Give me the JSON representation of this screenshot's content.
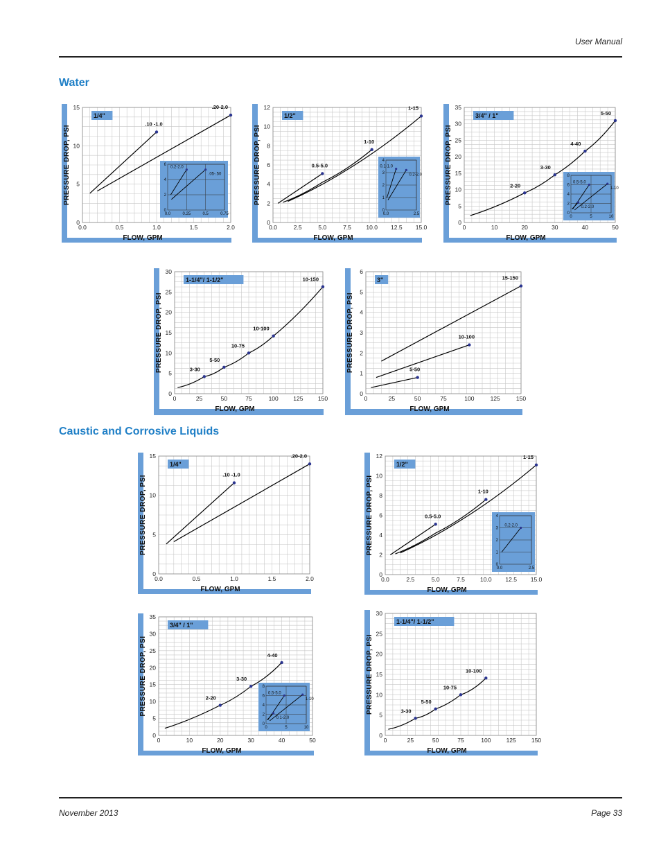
{
  "header": {
    "text": "User Manual"
  },
  "footer": {
    "date": "November 2013",
    "page": "Page 33"
  },
  "sections": {
    "water": "Water",
    "caustic": "Caustic and Corrosive Liquids"
  },
  "chart_data": [
    {
      "type": "line",
      "section": "Water",
      "tag": "1/4\"",
      "xlabel": "FLOW, GPM",
      "ylabel": "PRESSURE DROP, PSI",
      "xticks": [
        "0.0",
        "0.5",
        "1.0",
        "1.5",
        "2.0"
      ],
      "xlim": [
        0,
        2
      ],
      "yticks": [
        "0",
        "5",
        "10",
        "15"
      ],
      "ylim": [
        0,
        15
      ],
      "series": [
        {
          "name": ".10 -1.0",
          "points": [
            [
              0.1,
              3.8
            ],
            [
              1.0,
              11.8
            ]
          ],
          "end_label": ".10 -1.0"
        },
        {
          "name": ".20-2.0",
          "points": [
            [
              0.2,
              4.1
            ],
            [
              2.0,
              14.0
            ]
          ],
          "end_label": ".20-2.0"
        }
      ],
      "inset": {
        "xticks": [
          "0.0",
          "0.25",
          "0.5",
          "0.75"
        ],
        "xlim": [
          0,
          0.75
        ],
        "yticks": [
          "0",
          "2",
          "4",
          "6"
        ],
        "ylim": [
          0,
          6
        ],
        "series": [
          {
            "name": "0.2-2.0",
            "points": [
              [
                0.04,
                2.0
              ],
              [
                0.25,
                5.3
              ]
            ]
          },
          {
            "name": ".05-.50",
            "points": [
              [
                0.05,
                1.4
              ],
              [
                0.5,
                5.3
              ]
            ]
          }
        ],
        "labels": [
          "0.2-2.0",
          ".05-.50"
        ]
      }
    },
    {
      "type": "line",
      "section": "Water",
      "tag": "1/2\"",
      "xlabel": "FLOW, GPM",
      "ylabel": "PRESSURE DROP, PSI",
      "xticks": [
        "0.0",
        "2.5",
        "5.0",
        "7.5",
        "10.0",
        "12.5",
        "15.0"
      ],
      "xlim": [
        0,
        15
      ],
      "yticks": [
        "0",
        "2",
        "4",
        "6",
        "8",
        "10",
        "12"
      ],
      "ylim": [
        0,
        12
      ],
      "series": [
        {
          "name": "0.5-5.0",
          "points": [
            [
              0.5,
              2.0
            ],
            [
              5.0,
              5.1
            ]
          ],
          "end_label": "0.5-5.0"
        },
        {
          "name": "1-10",
          "points": [
            [
              1,
              2.1
            ],
            [
              5,
              4.2
            ],
            [
              10,
              7.6
            ]
          ],
          "end_label": "1-10"
        },
        {
          "name": "1-15",
          "points": [
            [
              1.5,
              2.2
            ],
            [
              7.5,
              5.5
            ],
            [
              15,
              11.1
            ]
          ],
          "end_label": "1-15"
        }
      ],
      "inset": {
        "xticks": [
          "0.0",
          "2.5"
        ],
        "xlim": [
          0,
          3
        ],
        "yticks": [
          "0",
          "1",
          "2",
          "3",
          "4"
        ],
        "ylim": [
          0,
          4
        ],
        "series": [
          {
            "name": "0.1-1.0",
            "points": [
              [
                0.1,
                1.0
              ],
              [
                1.0,
                3.3
              ]
            ]
          },
          {
            "name": "0.2-2.0",
            "points": [
              [
                0.2,
                0.8
              ],
              [
                2.0,
                3.2
              ]
            ]
          }
        ],
        "labels": [
          "0.1-1.0",
          "0.2-2.0"
        ]
      }
    },
    {
      "type": "line",
      "section": "Water",
      "tag": "3/4\" / 1\"",
      "xlabel": "FLOW, GPM",
      "ylabel": "PRESSURE DROP, PSI",
      "xticks": [
        "0",
        "10",
        "20",
        "30",
        "40",
        "50"
      ],
      "xlim": [
        0,
        50
      ],
      "yticks": [
        "0",
        "5",
        "10",
        "15",
        "20",
        "25",
        "30",
        "35"
      ],
      "ylim": [
        0,
        35
      ],
      "series": [
        {
          "name": "",
          "points": [
            [
              2,
              2.1
            ],
            [
              20,
              9.0
            ],
            [
              30,
              14.5
            ],
            [
              40,
              21.7
            ],
            [
              50,
              31.0
            ]
          ],
          "markers": [
            [
              20,
              9.0
            ],
            [
              30,
              14.5
            ],
            [
              40,
              21.7
            ],
            [
              50,
              31.0
            ]
          ],
          "marker_labels": [
            "2-20",
            "3-30",
            "4-40",
            "5-50"
          ]
        }
      ],
      "inset": {
        "xticks": [
          "0",
          "5",
          "10"
        ],
        "xlim": [
          0,
          11
        ],
        "yticks": [
          "0",
          "2",
          "4",
          "6",
          "8"
        ],
        "ylim": [
          0,
          8
        ],
        "series": [
          {
            "name": "0.5-5.0",
            "points": [
              [
                0.5,
                0.8
              ],
              [
                5,
                6.0
              ]
            ]
          },
          {
            "name": "1-10",
            "points": [
              [
                1,
                0.6
              ],
              [
                10,
                6.2
              ]
            ]
          },
          {
            "name": "0.2-2.0",
            "points": [
              [
                0.3,
                0.8
              ],
              [
                2,
                2.2
              ]
            ]
          }
        ],
        "labels": [
          "0.5-5.0",
          "1-10",
          "0.2-2.0"
        ]
      }
    },
    {
      "type": "line",
      "section": "Water",
      "tag": "1-1/4\"/ 1-1/2\"",
      "xlabel": "FLOW, GPM",
      "ylabel": "PRESSURE DROP, PSI",
      "xticks": [
        "0",
        "25",
        "50",
        "75",
        "100",
        "125",
        "150"
      ],
      "xlim": [
        0,
        150
      ],
      "yticks": [
        "0",
        "5",
        "10",
        "15",
        "20",
        "25",
        "30"
      ],
      "ylim": [
        0,
        30
      ],
      "series": [
        {
          "name": "",
          "points": [
            [
              3,
              1.5
            ],
            [
              30,
              4.2
            ],
            [
              50,
              6.5
            ],
            [
              75,
              10.0
            ],
            [
              100,
              14.2
            ],
            [
              150,
              26.3
            ]
          ],
          "markers": [
            [
              30,
              4.2
            ],
            [
              50,
              6.5
            ],
            [
              75,
              10.0
            ],
            [
              100,
              14.2
            ],
            [
              150,
              26.3
            ]
          ],
          "marker_labels": [
            "3-30",
            "5-50",
            "10-75",
            "10-100",
            "10-150"
          ]
        }
      ]
    },
    {
      "type": "line",
      "section": "Water",
      "tag": "3\"",
      "xlabel": "FLOW, GPM",
      "ylabel": "PRESSURE DROP, PSI",
      "xticks": [
        "0",
        "25",
        "50",
        "75",
        "100",
        "125",
        "150"
      ],
      "xlim": [
        0,
        150
      ],
      "yticks": [
        "0",
        "1",
        "2",
        "3",
        "4",
        "5",
        "6"
      ],
      "ylim": [
        0,
        6
      ],
      "series": [
        {
          "name": "5-50",
          "points": [
            [
              5,
              0.3
            ],
            [
              50,
              0.8
            ]
          ],
          "end_label": "5-50"
        },
        {
          "name": "10-100",
          "points": [
            [
              10,
              0.8
            ],
            [
              100,
              2.4
            ]
          ],
          "end_label": "10-100"
        },
        {
          "name": "15-150",
          "points": [
            [
              15,
              1.6
            ],
            [
              150,
              5.3
            ]
          ],
          "end_label": "15-150"
        }
      ]
    },
    {
      "type": "line",
      "section": "Caustic and Corrosive Liquids",
      "tag": "1/4\"",
      "xlabel": "FLOW, GPM",
      "ylabel": "PRESSURE DROP, PSI",
      "xticks": [
        "0.0",
        "0.5",
        "1.0",
        "1.5",
        "2.0"
      ],
      "xlim": [
        0,
        2
      ],
      "yticks": [
        "0",
        "5",
        "10",
        "15"
      ],
      "ylim": [
        0,
        15
      ],
      "series": [
        {
          "name": ".10 -1.0",
          "points": [
            [
              0.1,
              3.8
            ],
            [
              1.0,
              11.6
            ]
          ],
          "end_label": ".10 -1.0"
        },
        {
          "name": ".20-2.0",
          "points": [
            [
              0.2,
              4.1
            ],
            [
              2.0,
              14.0
            ]
          ],
          "end_label": ".20-2.0"
        }
      ]
    },
    {
      "type": "line",
      "section": "Caustic and Corrosive Liquids",
      "tag": "1/2\"",
      "xlabel": "FLOW, GPM",
      "ylabel": "PRESSURE DROP, PSI",
      "xticks": [
        "0.0",
        "2.5",
        "5.0",
        "7.5",
        "10.0",
        "12.5",
        "15.0"
      ],
      "xlim": [
        0,
        15
      ],
      "yticks": [
        "0",
        "2",
        "4",
        "6",
        "8",
        "10",
        "12"
      ],
      "ylim": [
        0,
        12
      ],
      "series": [
        {
          "name": "0.5-5.0",
          "points": [
            [
              0.5,
              2.0
            ],
            [
              5.0,
              5.1
            ]
          ],
          "end_label": "0.5-5.0"
        },
        {
          "name": "1-10",
          "points": [
            [
              1,
              2.1
            ],
            [
              5,
              4.2
            ],
            [
              10,
              7.6
            ]
          ],
          "end_label": "1-10"
        },
        {
          "name": "1-15",
          "points": [
            [
              1.5,
              2.2
            ],
            [
              7.5,
              5.5
            ],
            [
              15,
              11.1
            ]
          ],
          "end_label": "1-15"
        }
      ],
      "inset": {
        "xticks": [
          "0.0",
          "2.5"
        ],
        "xlim": [
          0,
          3
        ],
        "yticks": [
          "0",
          "1",
          "2",
          "3",
          "4"
        ],
        "ylim": [
          0,
          4
        ],
        "series": [
          {
            "name": "0.2-2.0",
            "points": [
              [
                0.2,
                1.0
              ],
              [
                2.0,
                3.0
              ]
            ]
          }
        ],
        "labels": [
          "0.2-2.0"
        ]
      }
    },
    {
      "type": "line",
      "section": "Caustic and Corrosive Liquids",
      "tag": "3/4\" / 1\"",
      "xlabel": "FLOW, GPM",
      "ylabel": "PRESSURE DROP, PSI",
      "xticks": [
        "0",
        "10",
        "20",
        "30",
        "40",
        "50"
      ],
      "xlim": [
        0,
        50
      ],
      "yticks": [
        "0",
        "5",
        "10",
        "15",
        "20",
        "25",
        "30",
        "35"
      ],
      "ylim": [
        0,
        35
      ],
      "series": [
        {
          "name": "",
          "points": [
            [
              2,
              2.1
            ],
            [
              20,
              8.9
            ],
            [
              30,
              14.5
            ],
            [
              40,
              21.5
            ]
          ],
          "markers": [
            [
              20,
              8.9
            ],
            [
              30,
              14.5
            ],
            [
              40,
              21.5
            ]
          ],
          "marker_labels": [
            "2-20",
            "3-30",
            "4-40"
          ]
        }
      ],
      "inset": {
        "xticks": [
          "0",
          "5",
          "10"
        ],
        "xlim": [
          0,
          11
        ],
        "yticks": [
          "0",
          "2",
          "4",
          "6",
          "8"
        ],
        "ylim": [
          0,
          8
        ],
        "series": [
          {
            "name": "0.5-5.0",
            "points": [
              [
                0.5,
                0.8
              ],
              [
                5,
                6.0
              ]
            ]
          },
          {
            "name": "1-10",
            "points": [
              [
                1,
                0.6
              ],
              [
                10,
                6.2
              ]
            ]
          },
          {
            "name": "0.1-2.0",
            "points": [
              [
                0.3,
                0.8
              ],
              [
                2,
                2.2
              ]
            ]
          }
        ],
        "labels": [
          "0.5-5.0",
          "1-10",
          "0.1-2.0"
        ]
      }
    },
    {
      "type": "line",
      "section": "Caustic and Corrosive Liquids",
      "tag": "1-1/4\"/ 1-1/2\"",
      "xlabel": "FLOW, GPM",
      "ylabel": "PRESSURE DROP, PSI",
      "xticks": [
        "0",
        "25",
        "50",
        "75",
        "100",
        "125",
        "150"
      ],
      "xlim": [
        0,
        150
      ],
      "yticks": [
        "0",
        "5",
        "10",
        "15",
        "20",
        "25",
        "30"
      ],
      "ylim": [
        0,
        30
      ],
      "series": [
        {
          "name": "",
          "points": [
            [
              3,
              1.5
            ],
            [
              30,
              4.2
            ],
            [
              50,
              6.5
            ],
            [
              75,
              10.0
            ],
            [
              100,
              14.1
            ]
          ],
          "markers": [
            [
              30,
              4.2
            ],
            [
              50,
              6.5
            ],
            [
              75,
              10.0
            ],
            [
              100,
              14.1
            ]
          ],
          "marker_labels": [
            "3-30",
            "5-50",
            "10-75",
            "10-100"
          ]
        }
      ]
    }
  ]
}
